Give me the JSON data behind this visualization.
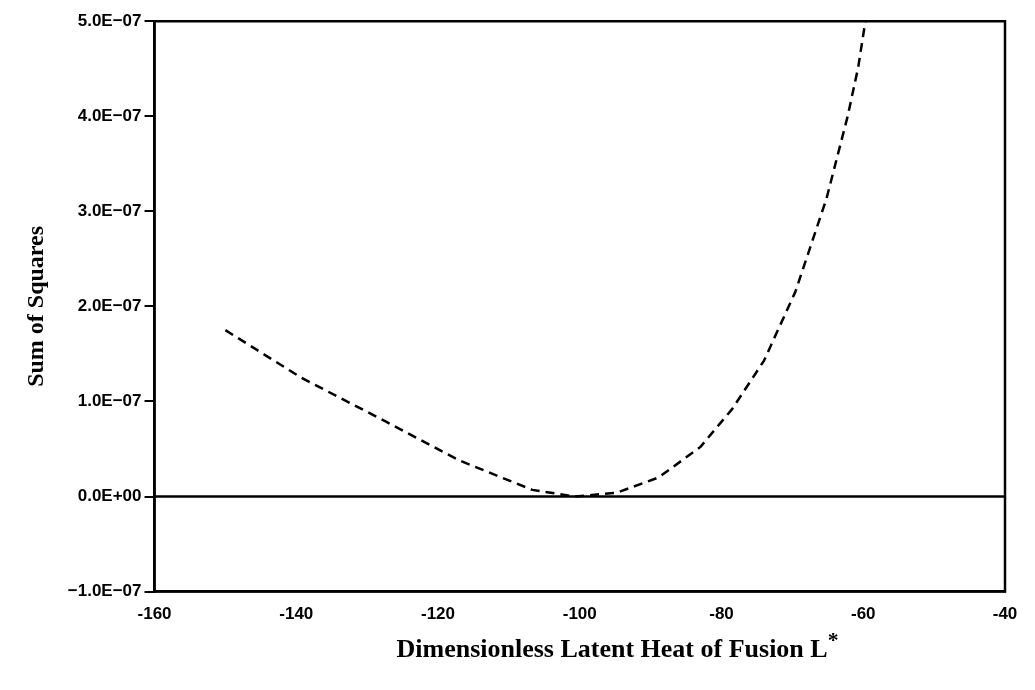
{
  "chart_data": {
    "type": "line",
    "xlabel": "Dimensionless Latent Heat of Fusion L$^{*}$",
    "ylabel": "Sum of Squares",
    "series": [
      {
        "color": "#000000",
        "x": [
          -150,
          -139.3,
          -127.4,
          -117,
          -106.7,
          -100.7,
          -94.8,
          -88.9,
          -83,
          -78.5,
          -74,
          -69.6,
          -65.2,
          -62.2,
          -60.7,
          -59.7
        ],
        "values": [
          1.75e-07,
          1.25e-07,
          7.9e-08,
          3.8e-08,
          7e-09,
          0,
          4e-09,
          2e-08,
          5.2e-08,
          9.2e-08,
          1.43e-07,
          2.15e-07,
          3.13e-07,
          4e-07,
          4.52e-07,
          5e-07
        ]
      }
    ],
    "xlim": [
      -160,
      -40
    ],
    "xticks": [
      -160,
      -140,
      -120,
      -100,
      -80,
      -60,
      -40
    ],
    "ylim": [
      -1e-07,
      5e-07
    ],
    "yticks": [
      {
        "value": -1e-07,
        "label": "−1.0E−07"
      },
      {
        "value": 0,
        "label": "0.0E+00"
      },
      {
        "value": 1e-07,
        "label": "1.0E−07"
      },
      {
        "value": 2e-07,
        "label": "2.0E−07"
      },
      {
        "value": 3e-07,
        "label": "3.0E−07"
      },
      {
        "value": 4e-07,
        "label": "4.0E−07"
      },
      {
        "value": 5e-07,
        "label": "5.0E−07"
      }
    ],
    "ref_lines": [
      {
        "axis": "y",
        "value": 0,
        "color": "#000000",
        "line_style": "solid"
      }
    ],
    "grid": false,
    "legend": false,
    "marker": "none",
    "line_style": "dashed"
  }
}
